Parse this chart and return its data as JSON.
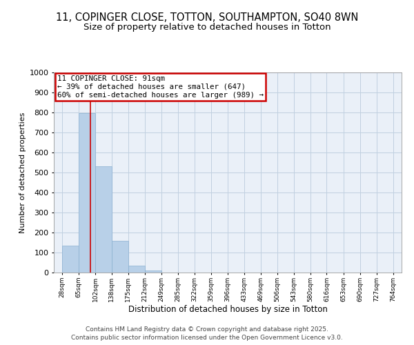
{
  "title": "11, COPINGER CLOSE, TOTTON, SOUTHAMPTON, SO40 8WN",
  "subtitle": "Size of property relative to detached houses in Totton",
  "xlabel": "Distribution of detached houses by size in Totton",
  "ylabel": "Number of detached properties",
  "footer_line1": "Contains HM Land Registry data © Crown copyright and database right 2025.",
  "footer_line2": "Contains public sector information licensed under the Open Government Licence v3.0.",
  "bins": [
    28,
    65,
    102,
    138,
    175,
    212,
    249,
    285,
    322,
    359,
    396,
    433,
    469,
    506,
    543,
    580,
    616,
    653,
    690,
    727,
    764
  ],
  "counts": [
    135,
    795,
    530,
    160,
    35,
    10,
    0,
    0,
    0,
    0,
    0,
    0,
    0,
    0,
    0,
    0,
    0,
    0,
    0,
    0
  ],
  "bar_color": "#b8d0e8",
  "bar_edge_color": "#8ab0d0",
  "grid_color": "#c0d0e0",
  "red_line_x": 91,
  "annotation_title": "11 COPINGER CLOSE: 91sqm",
  "annotation_line1": "← 39% of detached houses are smaller (647)",
  "annotation_line2": "60% of semi-detached houses are larger (989) →",
  "annotation_box_color": "#ffffff",
  "annotation_border_color": "#cc0000",
  "red_line_color": "#cc0000",
  "ylim": [
    0,
    1000
  ],
  "yticks": [
    0,
    100,
    200,
    300,
    400,
    500,
    600,
    700,
    800,
    900,
    1000
  ],
  "background_color": "#ffffff",
  "plot_background_color": "#eaf0f8",
  "title_fontsize": 10.5,
  "subtitle_fontsize": 9.5,
  "footer_fontsize": 6.5
}
